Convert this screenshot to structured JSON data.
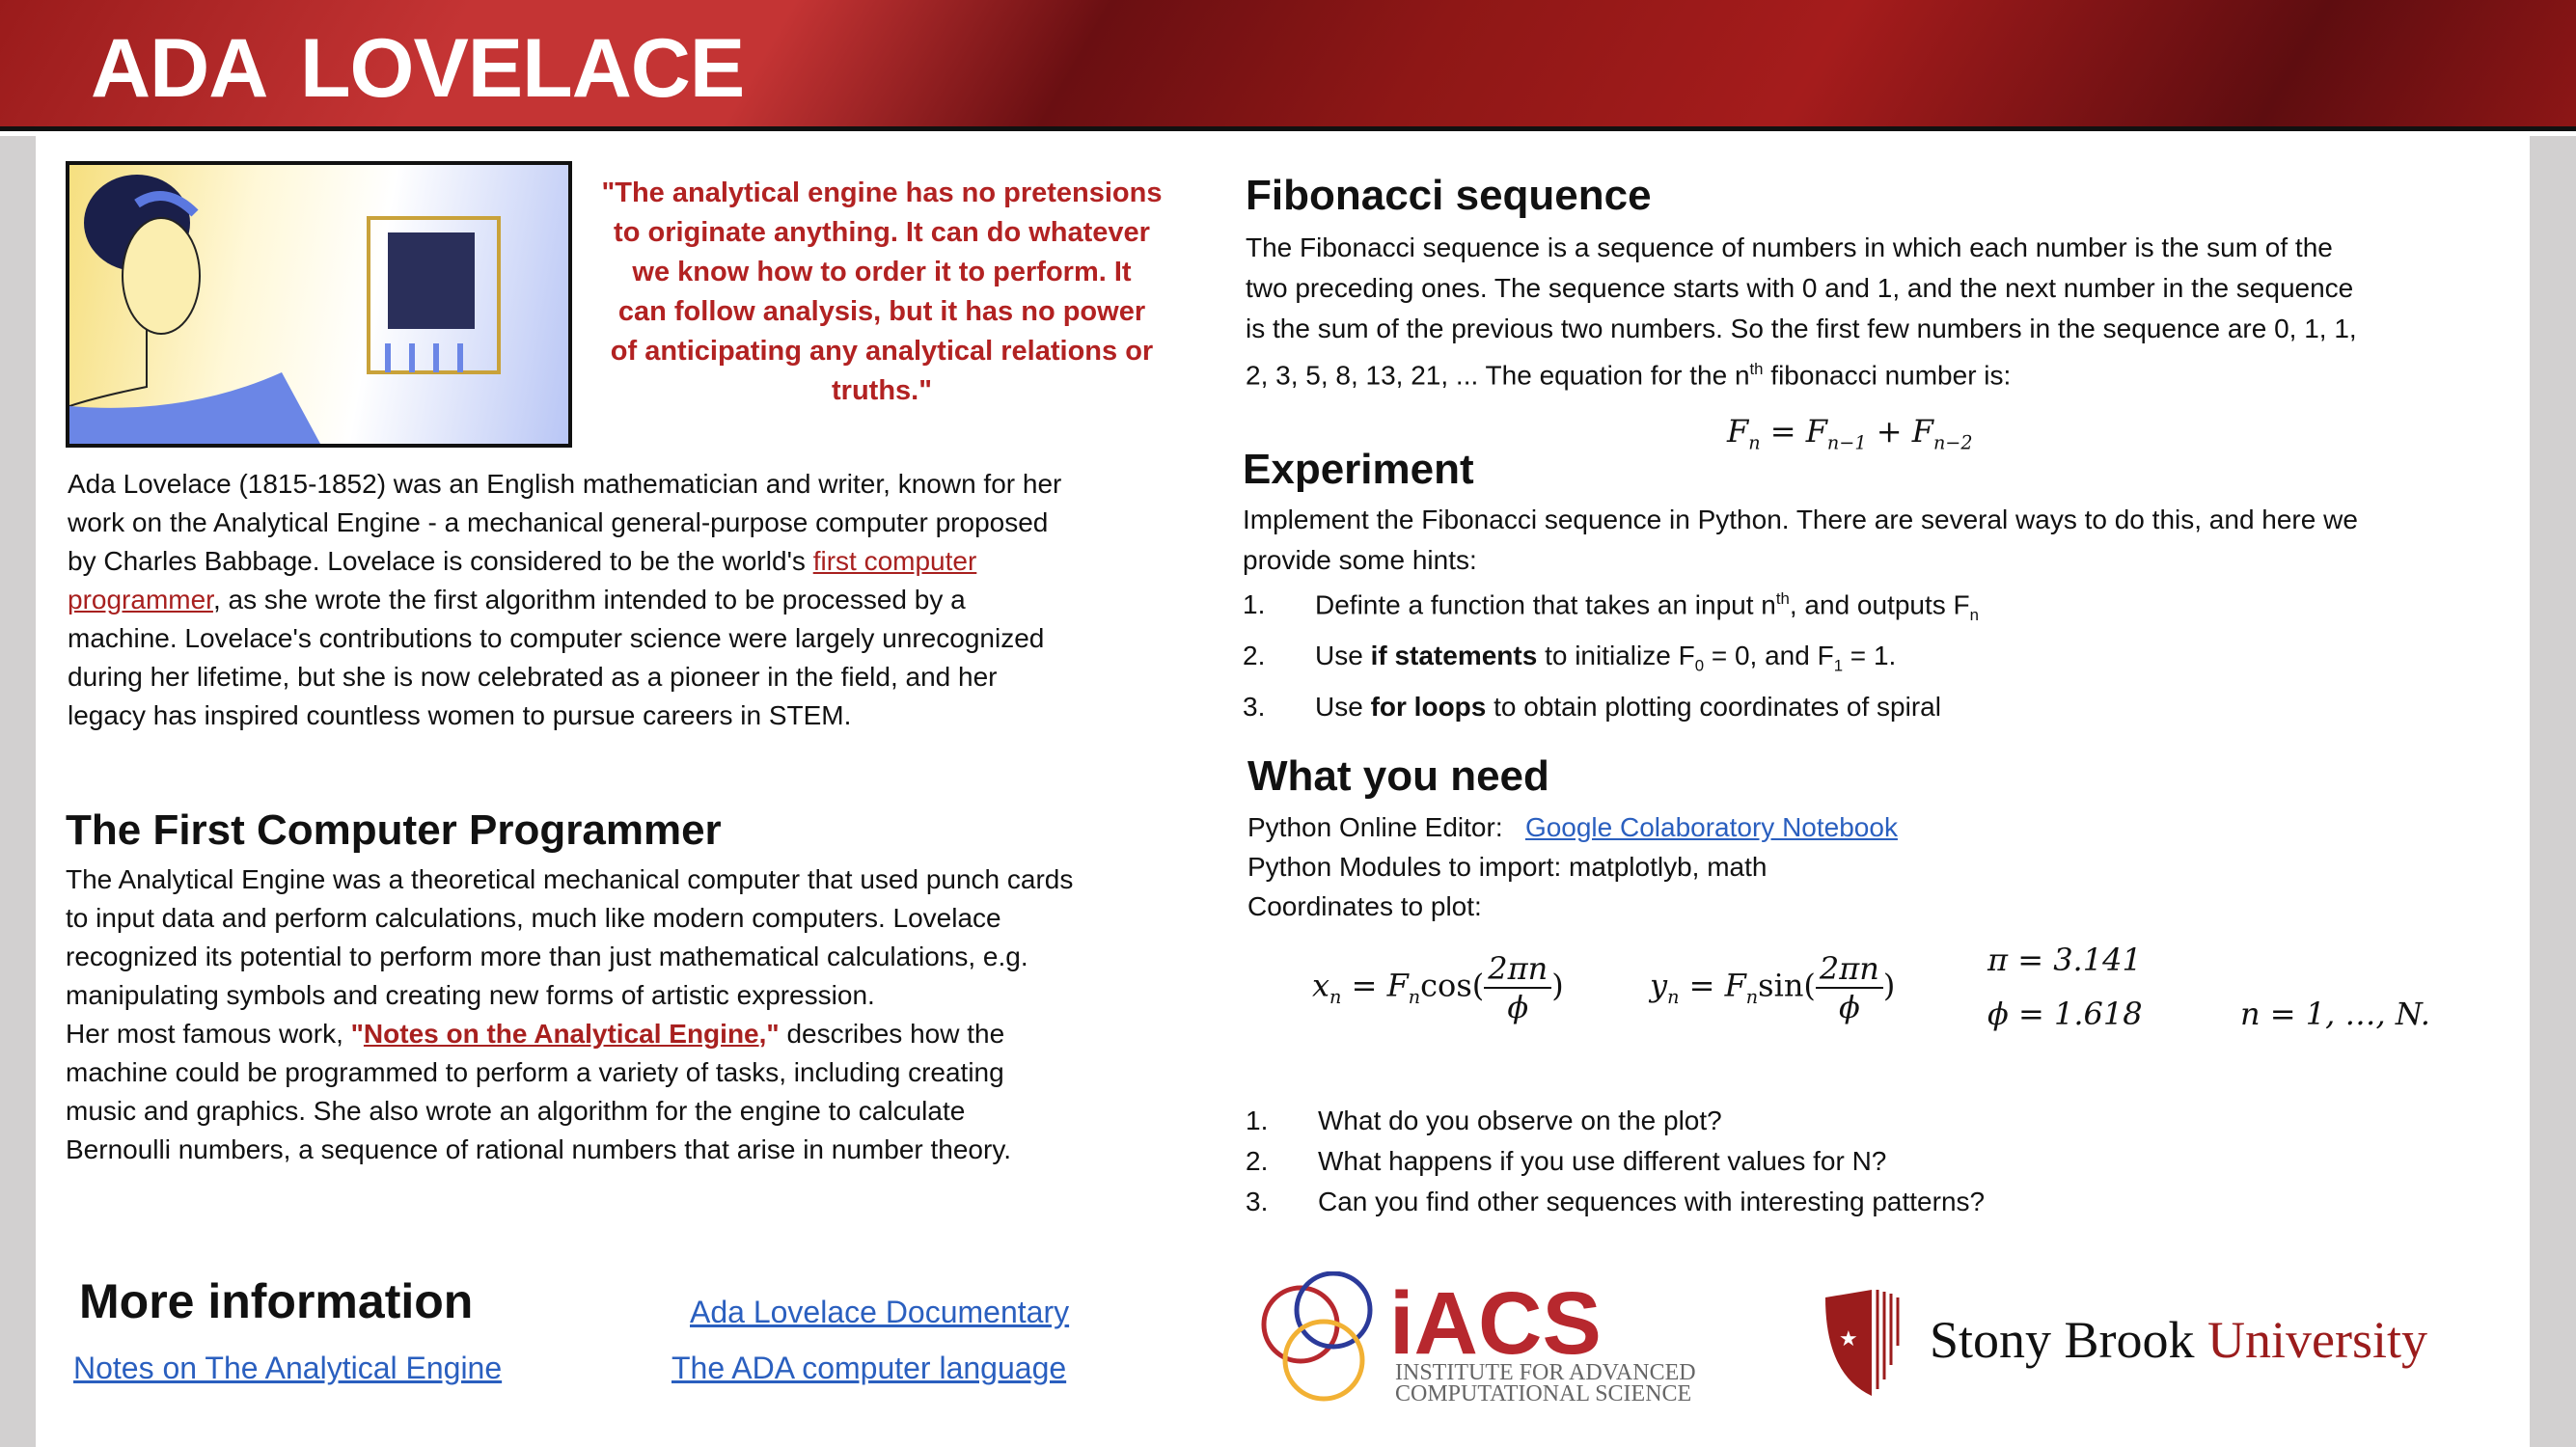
{
  "header": {
    "title": "ADA  LOVELACE"
  },
  "quote": [
    "\"The analytical engine has no pretensions",
    "to originate anything. It can do whatever",
    "we know how to order it to perform. It",
    "can follow analysis, but it has no power",
    "of anticipating any analytical relations or",
    "truths.\""
  ],
  "bio": [
    [
      {
        "t": "Ada Lovelace (1815-1852) was an English mathematician and writer, known for her"
      }
    ],
    [
      {
        "t": "work on the Analytical Engine - a mechanical general-purpose computer proposed"
      }
    ],
    [
      {
        "t": "by Charles Babbage. Lovelace is considered to be the world's "
      },
      {
        "t": "first computer",
        "c": "redlink",
        "i": 1
      }
    ],
    [
      {
        "t": "programmer",
        "c": "redlink",
        "i": 1
      },
      {
        "t": ", as she wrote the first algorithm intended to be processed by a"
      }
    ],
    [
      {
        "t": "machine. Lovelace's contributions to computer science were largely unrecognized"
      }
    ],
    [
      {
        "t": "during her lifetime, but she is now celebrated as a pioneer in the field, and her"
      }
    ],
    [
      {
        "t": "legacy has inspired countless women to pursue careers in STEM."
      }
    ]
  ],
  "programmer": {
    "heading": "The First Computer Programmer",
    "lines": [
      [
        {
          "t": "The Analytical Engine was a theoretical mechanical computer that used punch cards"
        }
      ],
      [
        {
          "t": "to input data and perform calculations, much like modern computers. Lovelace"
        }
      ],
      [
        {
          "t": "recognized its potential to perform more than just mathematical calculations, e.g."
        }
      ],
      [
        {
          "t": "manipulating symbols and creating new forms of artistic expression."
        }
      ],
      [
        {
          "t": "Her most famous work, "
        },
        {
          "t": "\"",
          "c": "red b"
        },
        {
          "t": "Notes on the Analytical Engine",
          "c": "redlink b",
          "i": 1
        },
        {
          "t": ",\"",
          "c": "red b"
        },
        {
          "t": " describes how the"
        }
      ],
      [
        {
          "t": "machine could be programmed to perform a variety of tasks, including creating"
        }
      ],
      [
        {
          "t": "music and graphics. She also wrote an algorithm for the engine to calculate"
        }
      ],
      [
        {
          "t": "Bernoulli numbers, a sequence of rational numbers that arise in number theory."
        }
      ]
    ]
  },
  "more_info": {
    "heading": "More information",
    "links": [
      "Ada Lovelace Documentary",
      "Notes on The Analytical Engine ",
      "The ADA computer language"
    ]
  },
  "fibonacci": {
    "heading": "Fibonacci sequence",
    "lines": [
      [
        {
          "t": "The Fibonacci sequence is a sequence of numbers in which each number is the sum of the"
        }
      ],
      [
        {
          "t": "two preceding ones. The sequence starts with 0 and 1, and the next number in the sequence"
        }
      ],
      [
        {
          "t": "is the sum of the previous two numbers. So the first few numbers in the sequence are 0, 1, 1,"
        }
      ],
      [
        {
          "t": "2, 3, 5, 8, 13, 21, ... The equation for the n"
        },
        {
          "t": "th",
          "c": "sup"
        },
        {
          "t": " fibonacci number is:"
        }
      ]
    ]
  },
  "experiment": {
    "heading": "Experiment",
    "lines": [
      [
        {
          "t": "Implement the Fibonacci sequence in Python. There are several ways to do this, and here we"
        }
      ],
      [
        {
          "t": "provide some hints:"
        }
      ]
    ],
    "hints": [
      [
        {
          "t": "Definte a function that takes an input n"
        },
        {
          "t": "th",
          "c": "sup"
        },
        {
          "t": ", and outputs F"
        },
        {
          "t": "n",
          "c": "sub"
        }
      ],
      [
        {
          "t": "Use "
        },
        {
          "t": "if statements",
          "c": "b"
        },
        {
          "t": " to initialize F"
        },
        {
          "t": "0",
          "c": "sub"
        },
        {
          "t": " = 0, and F"
        },
        {
          "t": "1",
          "c": "sub"
        },
        {
          "t": " = 1."
        }
      ],
      [
        {
          "t": "Use "
        },
        {
          "t": "for loops",
          "c": "b"
        },
        {
          "t": " to obtain plotting coordinates of spiral"
        }
      ]
    ]
  },
  "need": {
    "heading": "What you need",
    "editor_label": "Python Online Editor:",
    "editor_link": "Google Colaboratory Notebook",
    "modules": "Python Modules to import: matplotlyb, math",
    "coords": "Coordinates to plot:",
    "pi": "π = 3.141",
    "phi": "ϕ = 1.618",
    "range": "n = 1, …, N.",
    "questions": [
      "What do you observe on the plot?",
      "What happens if you use different values for N?",
      "Can you find other sequences with interesting patterns?"
    ]
  },
  "logos": {
    "iacs": "iACS",
    "iacs_sub1": "INSTITUTE FOR ADVANCED",
    "iacs_sub2": "COMPUTATIONAL SCIENCE",
    "sbu1": "Stony Brook",
    "sbu2": "University"
  },
  "colors": {
    "header": "#a51c1c",
    "quote": "#b22222",
    "link": "#2a5fbf",
    "sbu": "#9b1c1c"
  }
}
